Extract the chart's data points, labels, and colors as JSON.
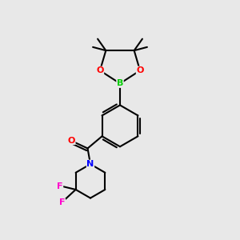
{
  "background_color": "#e8e8e8",
  "bond_color": "#000000",
  "bond_width": 1.5,
  "atom_colors": {
    "O": "#ff0000",
    "B": "#00cc00",
    "N": "#0000ff",
    "F": "#ff00cc",
    "C": "#000000"
  },
  "font_size": 8,
  "fig_size": [
    3.0,
    3.0
  ],
  "dpi": 100,
  "xlim": [
    0,
    10
  ],
  "ylim": [
    0,
    10
  ]
}
